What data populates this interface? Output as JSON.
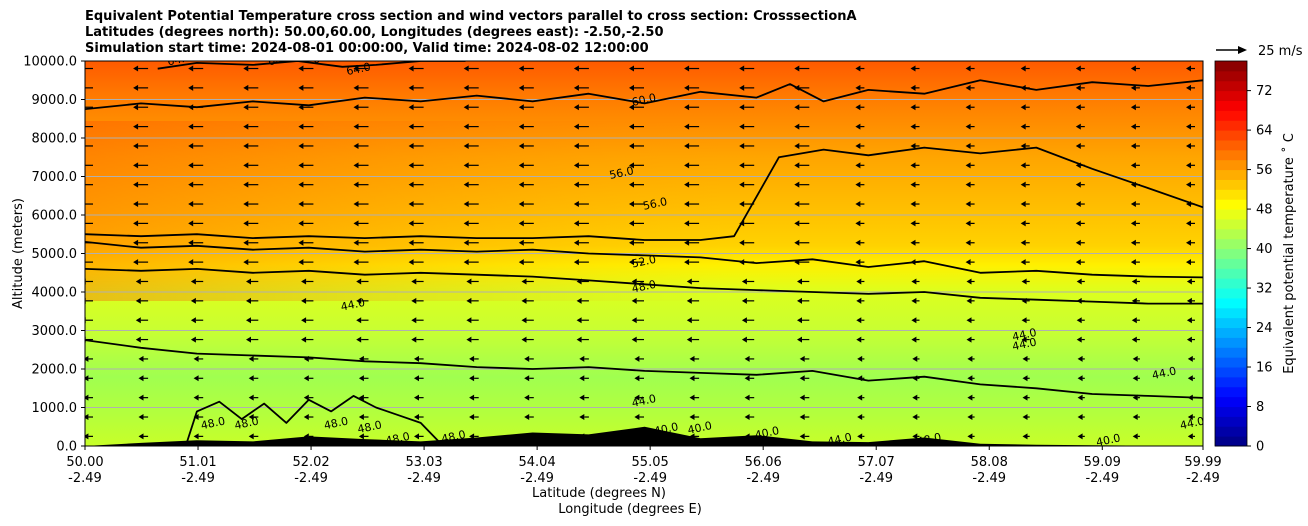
{
  "chart_data": {
    "type": "contour",
    "title": [
      "Equivalent Potential Temperature cross section and wind vectors parallel to cross section: CrosssectionA",
      "Latitudes (degrees north): 50.00,60.00, Longitudes (degrees east): -2.50,-2.50",
      "Simulation start time: 2024-08-01 00:00:00, Valid time: 2024-08-02 12:00:00"
    ],
    "xlabel": [
      "Latitude (degrees N)",
      "Longitude (degrees E)"
    ],
    "ylabel": "Altitude (meters)",
    "x_ticks": [
      {
        "lat": "50.00",
        "lon": "-2.49"
      },
      {
        "lat": "51.01",
        "lon": "-2.49"
      },
      {
        "lat": "52.02",
        "lon": "-2.49"
      },
      {
        "lat": "53.03",
        "lon": "-2.49"
      },
      {
        "lat": "54.04",
        "lon": "-2.49"
      },
      {
        "lat": "55.05",
        "lon": "-2.49"
      },
      {
        "lat": "56.06",
        "lon": "-2.49"
      },
      {
        "lat": "57.07",
        "lon": "-2.49"
      },
      {
        "lat": "58.08",
        "lon": "-2.49"
      },
      {
        "lat": "59.09",
        "lon": "-2.49"
      },
      {
        "lat": "59.99",
        "lon": "-2.49"
      }
    ],
    "x_range": [
      50.0,
      59.99
    ],
    "y_ticks": [
      "0.0",
      "1000.0",
      "2000.0",
      "3000.0",
      "4000.0",
      "5000.0",
      "6000.0",
      "7000.0",
      "8000.0",
      "9000.0",
      "10000.0"
    ],
    "ylim": [
      0,
      10000
    ],
    "grid": "horizontal",
    "colorbar": {
      "label": "Equivalent potential temperature ˚ C",
      "ticks": [
        "0",
        "8",
        "16",
        "24",
        "32",
        "40",
        "48",
        "56",
        "64",
        "72"
      ],
      "range": [
        0,
        78
      ],
      "colormap": "jet"
    },
    "quiver_key": "25 m/s",
    "contour_labels": [
      {
        "text": "64.0",
        "lat": 50.85,
        "alt": 9950
      },
      {
        "text": "64.0",
        "lat": 51.75,
        "alt": 9950
      },
      {
        "text": "64.0",
        "lat": 52.15,
        "alt": 10000
      },
      {
        "text": "64.0",
        "lat": 52.45,
        "alt": 9700
      },
      {
        "text": "60.0",
        "lat": 55.0,
        "alt": 8900
      },
      {
        "text": "56.0",
        "lat": 54.8,
        "alt": 7000
      },
      {
        "text": "56.0",
        "lat": 55.1,
        "alt": 6200
      },
      {
        "text": "52.0",
        "lat": 55.0,
        "alt": 4700
      },
      {
        "text": "48.0",
        "lat": 55.0,
        "alt": 4050
      },
      {
        "text": "44.0",
        "lat": 52.4,
        "alt": 3580
      },
      {
        "text": "44.0",
        "lat": 58.4,
        "alt": 2800
      },
      {
        "text": "44.0",
        "lat": 58.4,
        "alt": 2550
      },
      {
        "text": "44.0",
        "lat": 59.65,
        "alt": 1800
      },
      {
        "text": "44.0",
        "lat": 59.9,
        "alt": 500
      },
      {
        "text": "44.0",
        "lat": 55.0,
        "alt": 1080
      },
      {
        "text": "48.0",
        "lat": 51.15,
        "alt": 500
      },
      {
        "text": "48.0",
        "lat": 51.45,
        "alt": 500
      },
      {
        "text": "48.0",
        "lat": 52.25,
        "alt": 500
      },
      {
        "text": "48.0",
        "lat": 52.55,
        "alt": 400
      },
      {
        "text": "48.0",
        "lat": 52.8,
        "alt": 100
      },
      {
        "text": "48.0",
        "lat": 53.3,
        "alt": 150
      },
      {
        "text": "40.0",
        "lat": 55.2,
        "alt": 350
      },
      {
        "text": "40.0",
        "lat": 55.5,
        "alt": 380
      },
      {
        "text": "40.0",
        "lat": 56.1,
        "alt": 250
      },
      {
        "text": "44.0",
        "lat": 56.75,
        "alt": 80
      },
      {
        "text": "48.0",
        "lat": 57.55,
        "alt": 80
      },
      {
        "text": "40.0",
        "lat": 59.15,
        "alt": 60
      }
    ],
    "contour_levels": [
      {
        "level": 64,
        "lat": [
          50.65,
          51.0,
          51.5,
          51.9,
          52.3,
          52.6,
          53.0,
          53.4
        ],
        "alt": [
          9800,
          9950,
          9900,
          10000,
          9850,
          9900,
          10000,
          10000
        ]
      },
      {
        "level": 60,
        "lat": [
          50.0,
          50.5,
          51.0,
          51.5,
          52.0,
          52.5,
          53.0,
          53.5,
          54.0,
          54.5,
          55.0,
          55.5,
          56.0,
          56.3,
          56.6,
          57.0,
          57.5,
          58.0,
          58.5,
          59.0,
          59.5,
          59.99
        ],
        "alt": [
          8750,
          8900,
          8800,
          8950,
          8850,
          9050,
          8950,
          9100,
          8950,
          9150,
          8900,
          9200,
          9050,
          9400,
          8950,
          9250,
          9150,
          9500,
          9250,
          9450,
          9350,
          9500
        ]
      },
      {
        "level": 56,
        "lat": [
          50.0,
          50.5,
          51.0,
          51.5,
          52.0,
          52.5,
          53.0,
          53.5,
          54.0,
          54.5,
          55.0,
          55.5,
          55.8,
          56.2,
          56.6,
          57.0,
          57.5,
          58.0,
          58.5,
          59.0,
          59.5,
          59.99
        ],
        "alt": [
          5500,
          5450,
          5500,
          5400,
          5450,
          5400,
          5450,
          5400,
          5400,
          5450,
          5350,
          5350,
          5450,
          7500,
          7700,
          7550,
          7750,
          7600,
          7750,
          7200,
          6700,
          6200
        ]
      },
      {
        "level": 52,
        "lat": [
          50.0,
          50.5,
          51.0,
          51.5,
          52.0,
          52.5,
          53.0,
          53.5,
          54.0,
          54.5,
          55.0,
          55.5,
          56.0,
          56.5,
          57.0,
          57.5,
          58.0,
          58.5,
          59.0,
          59.5,
          59.99
        ],
        "alt": [
          5300,
          5150,
          5200,
          5100,
          5150,
          5050,
          5100,
          5050,
          5100,
          5000,
          4950,
          4900,
          4750,
          4850,
          4650,
          4800,
          4500,
          4550,
          4450,
          4400,
          4380
        ]
      },
      {
        "level": 48,
        "lat": [
          50.0,
          50.5,
          51.0,
          51.5,
          52.0,
          52.5,
          53.0,
          53.5,
          54.0,
          54.5,
          55.0,
          55.5,
          56.0,
          56.5,
          57.0,
          57.5,
          58.0,
          58.5,
          59.0,
          59.5,
          59.99
        ],
        "alt": [
          4600,
          4550,
          4600,
          4500,
          4550,
          4450,
          4500,
          4450,
          4400,
          4300,
          4200,
          4100,
          4050,
          4000,
          3950,
          4000,
          3850,
          3800,
          3750,
          3700,
          3700
        ]
      },
      {
        "level": 44,
        "lat": [
          50.0,
          50.5,
          51.0,
          51.5,
          52.0,
          52.5,
          53.0,
          53.5,
          54.0,
          54.5,
          55.0,
          55.5,
          56.0,
          56.5,
          57.0,
          57.5,
          58.0,
          58.5,
          59.0,
          59.5,
          59.99
        ],
        "alt": [
          2750,
          2550,
          2400,
          2350,
          2300,
          2200,
          2150,
          2050,
          2000,
          2050,
          1950,
          1900,
          1850,
          1950,
          1700,
          1800,
          1600,
          1500,
          1350,
          1300,
          1250
        ]
      },
      {
        "level": 48,
        "lat": [
          50.9,
          51.0,
          51.2,
          51.4,
          51.6,
          51.8,
          52.0,
          52.2,
          52.4,
          52.6,
          52.8,
          53.0,
          53.2
        ],
        "alt": [
          0,
          900,
          1150,
          700,
          1100,
          600,
          1200,
          900,
          1300,
          1000,
          800,
          600,
          0
        ]
      }
    ],
    "terrain": {
      "lat": [
        50.0,
        50.5,
        51.0,
        51.5,
        52.0,
        52.5,
        53.0,
        53.5,
        54.0,
        54.5,
        55.0,
        55.5,
        56.0,
        56.5,
        57.0,
        57.5,
        58.0,
        58.5,
        59.0,
        59.5,
        59.99
      ],
      "alt": [
        0,
        80,
        150,
        120,
        250,
        180,
        120,
        220,
        350,
        300,
        500,
        200,
        280,
        120,
        100,
        220,
        60,
        30,
        20,
        10,
        0
      ]
    },
    "wind": {
      "u_ms_typical": -6,
      "note": "easterly (leftward) arrows, weaker near surface"
    }
  }
}
